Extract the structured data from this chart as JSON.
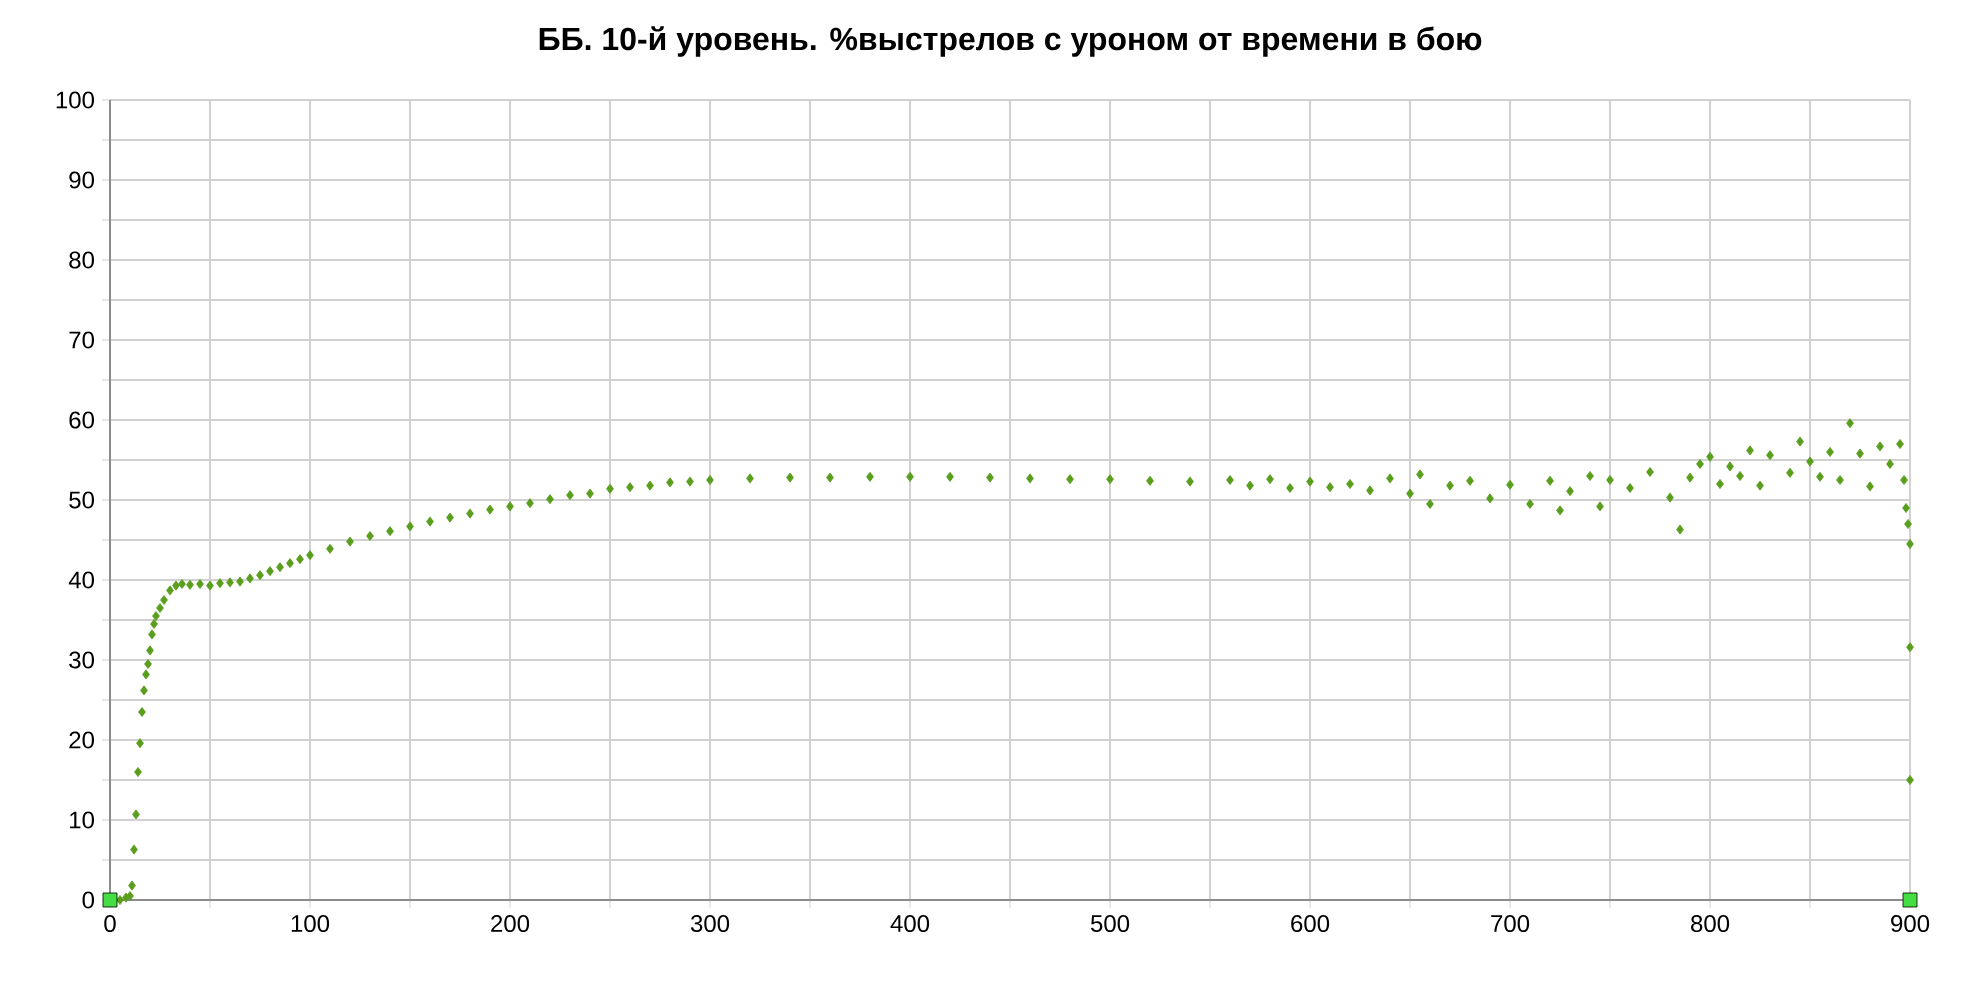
{
  "chart_data": {
    "type": "scatter",
    "title": "ББ. 10-й уровень. %выстрелов с уроном от  времени в бою",
    "xlim": [
      0,
      900
    ],
    "ylim": [
      0,
      100
    ],
    "xticks": [
      0,
      {
        "value": 50,
        "label": null
      },
      100,
      {
        "value": 150,
        "label": null
      },
      200,
      {
        "value": 250,
        "label": null
      },
      300,
      {
        "value": 350,
        "label": null
      },
      400,
      {
        "value": 450,
        "label": null
      },
      500,
      {
        "value": 550,
        "label": null
      },
      600,
      {
        "value": 650,
        "label": null
      },
      700,
      {
        "value": 750,
        "label": null
      },
      800,
      {
        "value": 850,
        "label": null
      },
      900
    ],
    "yticks": [
      0,
      {
        "value": 5,
        "label": null
      },
      10,
      {
        "value": 15,
        "label": null
      },
      20,
      {
        "value": 25,
        "label": null
      },
      30,
      {
        "value": 35,
        "label": null
      },
      40,
      {
        "value": 45,
        "label": null
      },
      50,
      {
        "value": 55,
        "label": null
      },
      60,
      {
        "value": 65,
        "label": null
      },
      70,
      {
        "value": 75,
        "label": null
      },
      80,
      {
        "value": 85,
        "label": null
      },
      90,
      {
        "value": 95,
        "label": null
      },
      100
    ],
    "grid": true,
    "series": [
      {
        "color": "#5a9e1e",
        "marker": "diamond",
        "x": [
          5,
          8,
          10,
          11,
          12,
          13,
          14,
          15,
          16,
          17,
          18,
          19,
          20,
          21,
          22,
          23,
          25,
          27,
          30,
          33,
          36,
          40,
          45,
          50,
          55,
          60,
          65,
          70,
          75,
          80,
          85,
          90,
          95,
          100,
          110,
          120,
          130,
          140,
          150,
          160,
          170,
          180,
          190,
          200,
          210,
          220,
          230,
          240,
          250,
          260,
          270,
          280,
          290,
          300,
          320,
          340,
          360,
          380,
          400,
          420,
          440,
          460,
          480,
          500,
          520,
          540,
          560,
          570,
          580,
          590,
          600,
          610,
          620,
          630,
          640,
          650,
          655,
          660,
          670,
          680,
          690,
          700,
          710,
          720,
          725,
          730,
          740,
          745,
          750,
          760,
          770,
          780,
          785,
          790,
          795,
          800,
          805,
          810,
          815,
          820,
          825,
          830,
          840,
          845,
          850,
          855,
          860,
          865,
          870,
          875,
          880,
          885,
          890,
          895,
          897,
          898,
          899,
          900,
          900,
          900
        ],
        "values": [
          0,
          0.3,
          0.5,
          1.8,
          6.3,
          10.7,
          16,
          19.6,
          23.5,
          26.2,
          28.2,
          29.5,
          31.2,
          33.2,
          34.5,
          35.5,
          36.5,
          37.5,
          38.7,
          39.3,
          39.5,
          39.4,
          39.5,
          39.3,
          39.6,
          39.7,
          39.8,
          40.2,
          40.6,
          41.1,
          41.6,
          42.1,
          42.6,
          43.1,
          43.9,
          44.8,
          45.5,
          46.1,
          46.7,
          47.3,
          47.8,
          48.3,
          48.8,
          49.2,
          49.6,
          50.1,
          50.6,
          50.8,
          51.4,
          51.6,
          51.8,
          52.2,
          52.3,
          52.5,
          52.7,
          52.8,
          52.8,
          52.9,
          52.9,
          52.9,
          52.8,
          52.7,
          52.6,
          52.6,
          52.4,
          52.3,
          52.5,
          51.8,
          52.6,
          51.5,
          52.3,
          51.6,
          52.0,
          51.2,
          52.7,
          50.8,
          53.2,
          49.5,
          51.8,
          52.4,
          50.2,
          51.9,
          49.5,
          52.4,
          48.7,
          51.1,
          53.0,
          49.2,
          52.5,
          51.5,
          53.5,
          50.3,
          46.3,
          52.8,
          54.5,
          55.4,
          52.0,
          54.2,
          53.0,
          56.2,
          51.8,
          55.6,
          53.4,
          57.3,
          54.8,
          52.9,
          56.0,
          52.5,
          59.6,
          55.8,
          51.7,
          56.7,
          54.5,
          57.0,
          52.5,
          49.0,
          47.0,
          44.5,
          31.6,
          15.0
        ]
      },
      {
        "color": "#44dd44",
        "marker": "square",
        "x": [
          0,
          900
        ],
        "values": [
          0,
          0
        ]
      }
    ]
  }
}
